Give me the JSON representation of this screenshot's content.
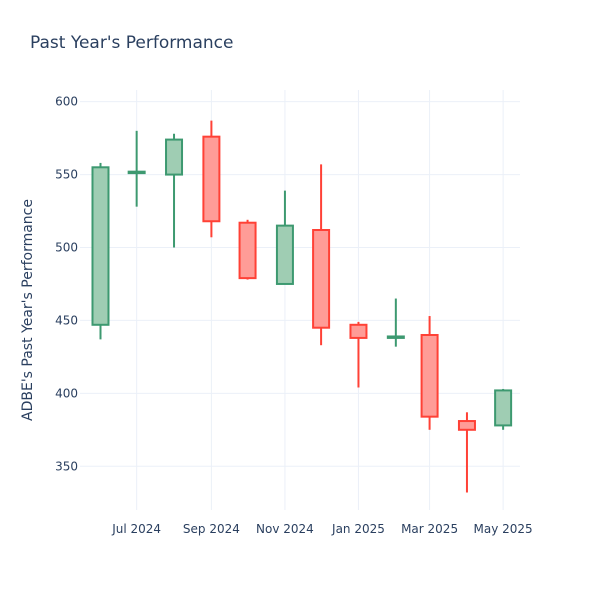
{
  "chart_data": {
    "type": "candlestick",
    "title": "Past Year's Performance",
    "xlabel": "",
    "ylabel": "ADBE's Past Year's Performance",
    "ylim": [
      320,
      608
    ],
    "yticks": [
      350,
      400,
      450,
      500,
      550,
      600
    ],
    "x_tick_labels": [
      "Jul 2024",
      "Sep 2024",
      "Nov 2024",
      "Jan 2025",
      "Mar 2025",
      "May 2025"
    ],
    "x_tick_dates": [
      "2024-07-01",
      "2024-09-01",
      "2024-11-01",
      "2025-01-01",
      "2025-03-01",
      "2025-05-01"
    ],
    "xlim_dates": [
      "2024-05-15",
      "2025-05-15"
    ],
    "grid": true,
    "colors": {
      "increasing_line": "#3d9970",
      "increasing_fill": "#9fcdb3",
      "decreasing_line": "#ff4136",
      "decreasing_fill": "#ff9c97",
      "grid": "#ebf0f8",
      "text": "#2a3f5f"
    },
    "candles": [
      {
        "date": "2024-06-01",
        "open": 447,
        "high": 558,
        "low": 437,
        "close": 555
      },
      {
        "date": "2024-07-01",
        "open": 551,
        "high": 580,
        "low": 528,
        "close": 552
      },
      {
        "date": "2024-08-01",
        "open": 550,
        "high": 578,
        "low": 500,
        "close": 574
      },
      {
        "date": "2024-09-01",
        "open": 576,
        "high": 587,
        "low": 507,
        "close": 518
      },
      {
        "date": "2024-10-01",
        "open": 517,
        "high": 519,
        "low": 478,
        "close": 479
      },
      {
        "date": "2024-11-01",
        "open": 475,
        "high": 539,
        "low": 475,
        "close": 515
      },
      {
        "date": "2024-12-01",
        "open": 512,
        "high": 557,
        "low": 433,
        "close": 445
      },
      {
        "date": "2025-01-01",
        "open": 447,
        "high": 449,
        "low": 404,
        "close": 438
      },
      {
        "date": "2025-02-01",
        "open": 438,
        "high": 465,
        "low": 432,
        "close": 439
      },
      {
        "date": "2025-03-01",
        "open": 440,
        "high": 453,
        "low": 375,
        "close": 384
      },
      {
        "date": "2025-04-01",
        "open": 381,
        "high": 387,
        "low": 332,
        "close": 375
      },
      {
        "date": "2025-05-01",
        "open": 378,
        "high": 403,
        "low": 375,
        "close": 402
      }
    ]
  }
}
